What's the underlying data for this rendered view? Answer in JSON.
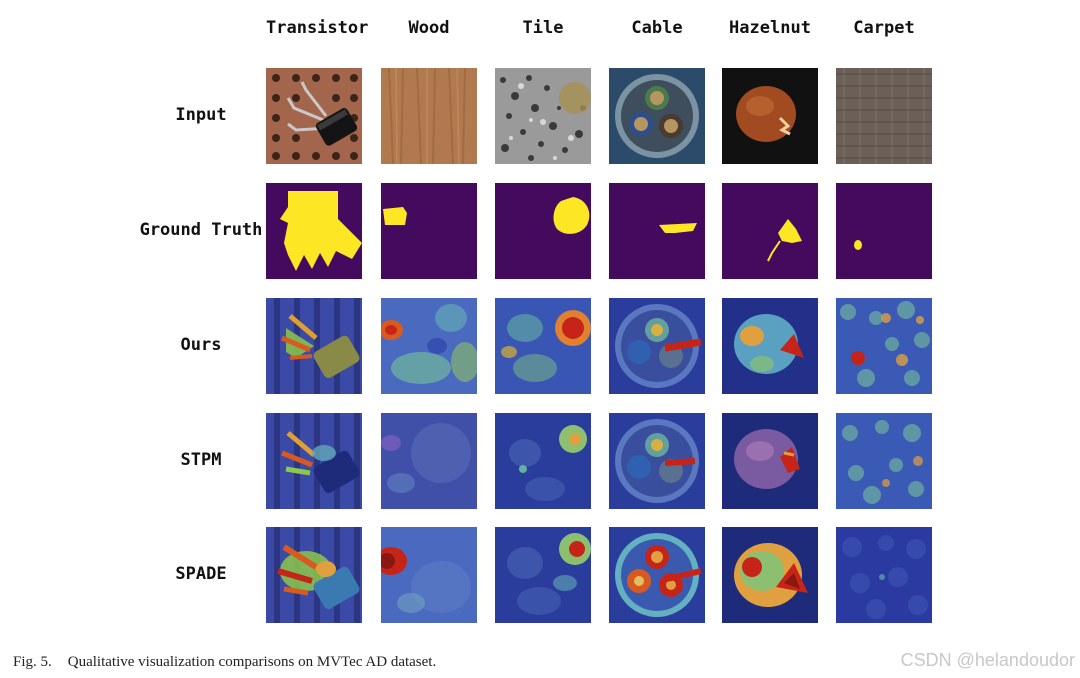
{
  "figure": {
    "columns": [
      "Transistor",
      "Wood",
      "Tile",
      "Cable",
      "Hazelnut",
      "Carpet"
    ],
    "rows": [
      "Input",
      "Ground Truth",
      "Ours",
      "STPM",
      "SPADE"
    ]
  },
  "caption": {
    "number": "Fig. 5.",
    "text": "Qualitative visualization comparisons on MVTec AD dataset."
  },
  "watermark": "CSDN @helandoudor",
  "colors": {
    "mask_background": "#440a5e",
    "mask_foreground": "#fde725",
    "heatmap_low": "#2b3d9c",
    "heatmap_high": "#c62418"
  },
  "icons": [
    "input-image",
    "ground-truth-mask",
    "anomaly-heatmap"
  ]
}
